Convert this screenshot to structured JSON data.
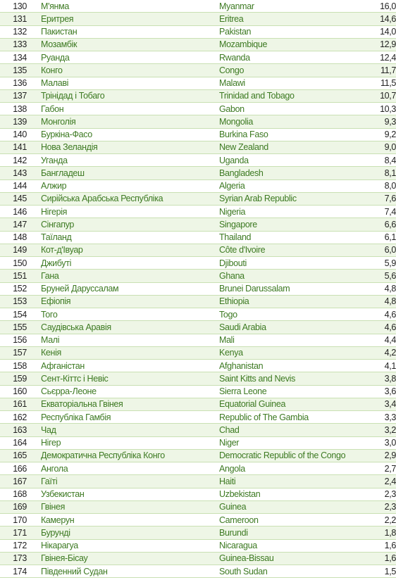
{
  "rows": [
    {
      "rank": "130",
      "ua": "М'янма",
      "en": "Myanmar",
      "value": "16,0"
    },
    {
      "rank": "131",
      "ua": "Еритрея",
      "en": "Eritrea",
      "value": "14,6"
    },
    {
      "rank": "132",
      "ua": "Пакистан",
      "en": "Pakistan",
      "value": "14,0"
    },
    {
      "rank": "133",
      "ua": "Мозамбік",
      "en": "Mozambique",
      "value": "12,9"
    },
    {
      "rank": "134",
      "ua": "Руанда",
      "en": "Rwanda",
      "value": "12,4"
    },
    {
      "rank": "135",
      "ua": "Конго",
      "en": "Congo",
      "value": "11,7"
    },
    {
      "rank": "136",
      "ua": "Малаві",
      "en": "Malawi",
      "value": "11,5"
    },
    {
      "rank": "137",
      "ua": "Трінідад і Тобаго",
      "en": "Trinidad and Tobago",
      "value": "10,7"
    },
    {
      "rank": "138",
      "ua": "Габон",
      "en": "Gabon",
      "value": "10,3"
    },
    {
      "rank": "139",
      "ua": "Монголія",
      "en": "Mongolia",
      "value": "9,3"
    },
    {
      "rank": "140",
      "ua": "Буркіна-Фасо",
      "en": "Burkina Faso",
      "value": "9,2"
    },
    {
      "rank": "141",
      "ua": "Нова Зеландія",
      "en": "New Zealand",
      "value": "9,0"
    },
    {
      "rank": "142",
      "ua": "Уганда",
      "en": "Uganda",
      "value": "8,4"
    },
    {
      "rank": "143",
      "ua": "Бангладеш",
      "en": "Bangladesh",
      "value": "8,1"
    },
    {
      "rank": "144",
      "ua": "Алжир",
      "en": "Algeria",
      "value": "8,0"
    },
    {
      "rank": "145",
      "ua": "Сирійська Арабська Республіка",
      "en": "Syrian Arab Republic",
      "value": "7,6"
    },
    {
      "rank": "146",
      "ua": "Нігерія",
      "en": "Nigeria",
      "value": "7,4"
    },
    {
      "rank": "147",
      "ua": "Сінгапур",
      "en": "Singapore",
      "value": "6,6"
    },
    {
      "rank": "148",
      "ua": "Таїланд",
      "en": "Thailand",
      "value": "6,1"
    },
    {
      "rank": "149",
      "ua": "Кот-д'Івуар",
      "en": "Côte d'Ivoire",
      "value": "6,0"
    },
    {
      "rank": "150",
      "ua": "Джибуті",
      "en": "Djibouti",
      "value": "5,9"
    },
    {
      "rank": "151",
      "ua": "Гана",
      "en": "Ghana",
      "value": "5,6"
    },
    {
      "rank": "152",
      "ua": "Бруней Даруссалам",
      "en": "Brunei Darussalam",
      "value": "4,8"
    },
    {
      "rank": "153",
      "ua": "Ефіопія",
      "en": "Ethiopia",
      "value": "4,8"
    },
    {
      "rank": "154",
      "ua": "Того",
      "en": "Togo",
      "value": "4,6"
    },
    {
      "rank": "155",
      "ua": "Саудівська Аравія",
      "en": "Saudi Arabia",
      "value": "4,6"
    },
    {
      "rank": "156",
      "ua": "Малі",
      "en": "Mali",
      "value": "4,4"
    },
    {
      "rank": "157",
      "ua": "Кенія",
      "en": "Kenya",
      "value": "4,2"
    },
    {
      "rank": "158",
      "ua": "Афганістан",
      "en": "Afghanistan",
      "value": "4,1"
    },
    {
      "rank": "159",
      "ua": "Сент-Кіттс і Невіс",
      "en": "Saint Kitts and Nevis",
      "value": "3,8"
    },
    {
      "rank": "160",
      "ua": "Сьєрра-Леоне",
      "en": "Sierra Leone",
      "value": "3,6"
    },
    {
      "rank": "161",
      "ua": "Екваторіальна Гвінея",
      "en": "Equatorial Guinea",
      "value": "3,4"
    },
    {
      "rank": "162",
      "ua": "Республіка Гамбія",
      "en": "Republic of The Gambia",
      "value": "3,3"
    },
    {
      "rank": "163",
      "ua": "Чад",
      "en": "Chad",
      "value": "3,2"
    },
    {
      "rank": "164",
      "ua": "Нігер",
      "en": "Niger",
      "value": "3,0"
    },
    {
      "rank": "165",
      "ua": "Демократична Республіка Конго",
      "en": "Democratic Republic of the Congo",
      "value": "2,9"
    },
    {
      "rank": "166",
      "ua": "Ангола",
      "en": "Angola",
      "value": "2,7"
    },
    {
      "rank": "167",
      "ua": "Гаїті",
      "en": "Haiti",
      "value": "2,4"
    },
    {
      "rank": "168",
      "ua": "Узбекистан",
      "en": "Uzbekistan",
      "value": "2,3"
    },
    {
      "rank": "169",
      "ua": "Гвінея",
      "en": "Guinea",
      "value": "2,3"
    },
    {
      "rank": "170",
      "ua": "Камерун",
      "en": "Cameroon",
      "value": "2,2"
    },
    {
      "rank": "171",
      "ua": "Бурунді",
      "en": "Burundi",
      "value": "1,8"
    },
    {
      "rank": "172",
      "ua": "Нікарагуа",
      "en": "Nicaragua",
      "value": "1,6"
    },
    {
      "rank": "173",
      "ua": "Гвінея-Бісау",
      "en": "Guinea-Bissau",
      "value": "1,6"
    },
    {
      "rank": "174",
      "ua": "Південний Судан",
      "en": "South Sudan",
      "value": "1,5"
    }
  ]
}
